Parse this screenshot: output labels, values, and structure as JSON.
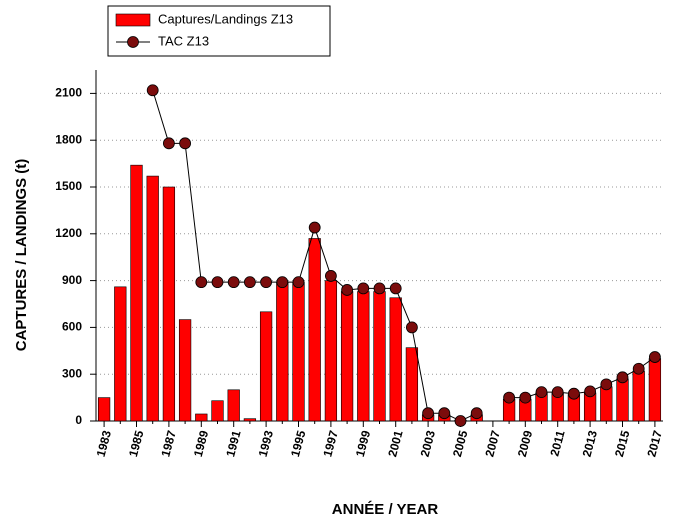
{
  "chart_data": {
    "type": "bar-line",
    "x_label": "ANNÉE / YEAR",
    "y_label": "CAPTURES / LANDINGS (t)",
    "categories": [
      "1983",
      null,
      "1985",
      null,
      "1987",
      null,
      "1989",
      null,
      "1991",
      null,
      "1993",
      null,
      "1995",
      null,
      "1997",
      null,
      "1999",
      null,
      "2001",
      null,
      "2003",
      null,
      "2005",
      null,
      "2007",
      null,
      "2009",
      null,
      "2011",
      null,
      "2013",
      null,
      "2015",
      null,
      "2017"
    ],
    "series": [
      {
        "name": "Captures/Landings Z13",
        "kind": "bar",
        "color": "#ff0000",
        "values": [
          150,
          860,
          1640,
          1570,
          1500,
          650,
          45,
          130,
          200,
          15,
          700,
          890,
          890,
          1170,
          900,
          830,
          830,
          830,
          790,
          470,
          40,
          40,
          5,
          40,
          0,
          140,
          140,
          180,
          180,
          170,
          180,
          220,
          270,
          320,
          400
        ]
      },
      {
        "name": "TAC Z13",
        "kind": "line",
        "color": "#7b0c0c",
        "values": [
          null,
          null,
          null,
          2120,
          1780,
          1780,
          890,
          890,
          890,
          890,
          890,
          890,
          890,
          1240,
          930,
          840,
          850,
          850,
          850,
          600,
          50,
          50,
          0,
          50,
          null,
          150,
          150,
          185,
          185,
          175,
          190,
          235,
          280,
          335,
          410
        ]
      }
    ],
    "ylim": [
      0,
      2250
    ],
    "yticks": [
      0,
      300,
      600,
      900,
      1200,
      1500,
      1800,
      2100
    ],
    "grid": true
  }
}
